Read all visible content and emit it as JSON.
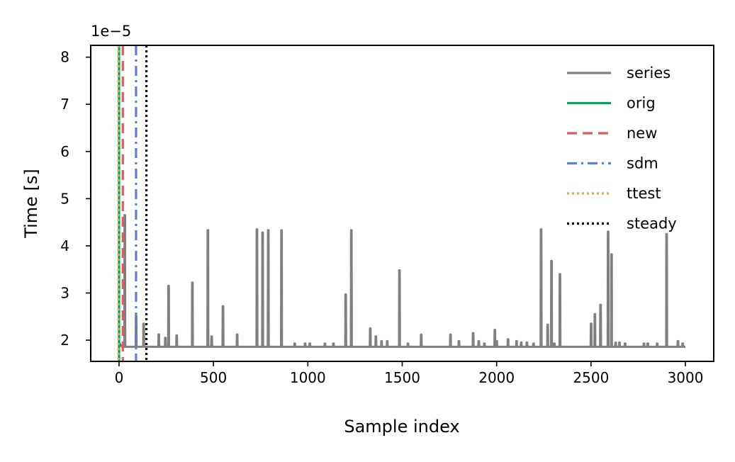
{
  "chart_data": {
    "type": "line",
    "xlabel": "Sample index",
    "ylabel": "Time [s]",
    "y_offset_label": "1e−5",
    "y_multiplier": 1e-05,
    "xlim": [
      -150,
      3150
    ],
    "ylim": [
      1.55,
      8.25
    ],
    "x_ticks": [
      0,
      500,
      1000,
      1500,
      2000,
      2500,
      3000
    ],
    "x_tick_labels": [
      "0",
      "500",
      "1000",
      "1500",
      "2000",
      "2500",
      "3000"
    ],
    "y_ticks": [
      2,
      3,
      4,
      5,
      6,
      7,
      8
    ],
    "y_tick_labels": [
      "2",
      "3",
      "4",
      "5",
      "6",
      "7",
      "8"
    ],
    "grid": false,
    "legend_position": "top-right",
    "series": {
      "name": "series",
      "color": "#808080",
      "baseline": 1.86,
      "start_value": 1.95,
      "spikes": [
        [
          22,
          1.95
        ],
        [
          30,
          4.65
        ],
        [
          90,
          2.5
        ],
        [
          130,
          2.35
        ],
        [
          210,
          2.12
        ],
        [
          245,
          2.05
        ],
        [
          262,
          3.15
        ],
        [
          305,
          2.1
        ],
        [
          388,
          3.22
        ],
        [
          470,
          4.33
        ],
        [
          490,
          2.08
        ],
        [
          550,
          2.72
        ],
        [
          625,
          2.12
        ],
        [
          730,
          4.35
        ],
        [
          760,
          4.28
        ],
        [
          790,
          4.33
        ],
        [
          860,
          4.33
        ],
        [
          930,
          1.93
        ],
        [
          985,
          1.93
        ],
        [
          1010,
          1.93
        ],
        [
          1090,
          1.93
        ],
        [
          1135,
          1.93
        ],
        [
          1200,
          2.97
        ],
        [
          1230,
          4.33
        ],
        [
          1330,
          2.25
        ],
        [
          1360,
          2.08
        ],
        [
          1390,
          1.98
        ],
        [
          1420,
          1.98
        ],
        [
          1485,
          3.48
        ],
        [
          1530,
          1.93
        ],
        [
          1600,
          2.12
        ],
        [
          1755,
          2.12
        ],
        [
          1800,
          1.98
        ],
        [
          1875,
          2.15
        ],
        [
          1905,
          1.98
        ],
        [
          1935,
          1.93
        ],
        [
          1990,
          2.22
        ],
        [
          2000,
          1.98
        ],
        [
          2060,
          2.02
        ],
        [
          2105,
          1.98
        ],
        [
          2130,
          1.95
        ],
        [
          2160,
          1.95
        ],
        [
          2195,
          1.93
        ],
        [
          2235,
          4.35
        ],
        [
          2270,
          2.33
        ],
        [
          2290,
          3.68
        ],
        [
          2305,
          1.93
        ],
        [
          2335,
          3.4
        ],
        [
          2500,
          2.35
        ],
        [
          2520,
          2.55
        ],
        [
          2550,
          2.75
        ],
        [
          2590,
          4.3
        ],
        [
          2608,
          3.82
        ],
        [
          2630,
          1.95
        ],
        [
          2650,
          1.95
        ],
        [
          2680,
          1.93
        ],
        [
          2780,
          1.93
        ],
        [
          2800,
          1.93
        ],
        [
          2850,
          1.93
        ],
        [
          2900,
          4.25
        ],
        [
          2960,
          1.98
        ],
        [
          2985,
          1.93
        ]
      ],
      "x_end": 3000
    },
    "vlines": [
      {
        "name": "orig",
        "x": 0,
        "color": "#00a660",
        "style": "solid"
      },
      {
        "name": "new",
        "x": 20,
        "color": "#d95f5f",
        "style": "dashed"
      },
      {
        "name": "sdm",
        "x": 90,
        "color": "#5b7fd6",
        "style": "dashdot"
      },
      {
        "name": "ttest",
        "x": -3,
        "color": "#d9b04a",
        "style": "dotted"
      },
      {
        "name": "steady",
        "x": 145,
        "color": "#000000",
        "style": "dotted"
      }
    ],
    "legend": [
      {
        "label": "series",
        "color": "#808080",
        "style": "solid"
      },
      {
        "label": "orig",
        "color": "#00a660",
        "style": "solid"
      },
      {
        "label": "new",
        "color": "#d95f5f",
        "style": "dashed"
      },
      {
        "label": "sdm",
        "color": "#5b7fd6",
        "style": "dashdot"
      },
      {
        "label": "ttest",
        "color": "#d9b04a",
        "style": "dotted"
      },
      {
        "label": "steady",
        "color": "#000000",
        "style": "dotted"
      }
    ]
  }
}
